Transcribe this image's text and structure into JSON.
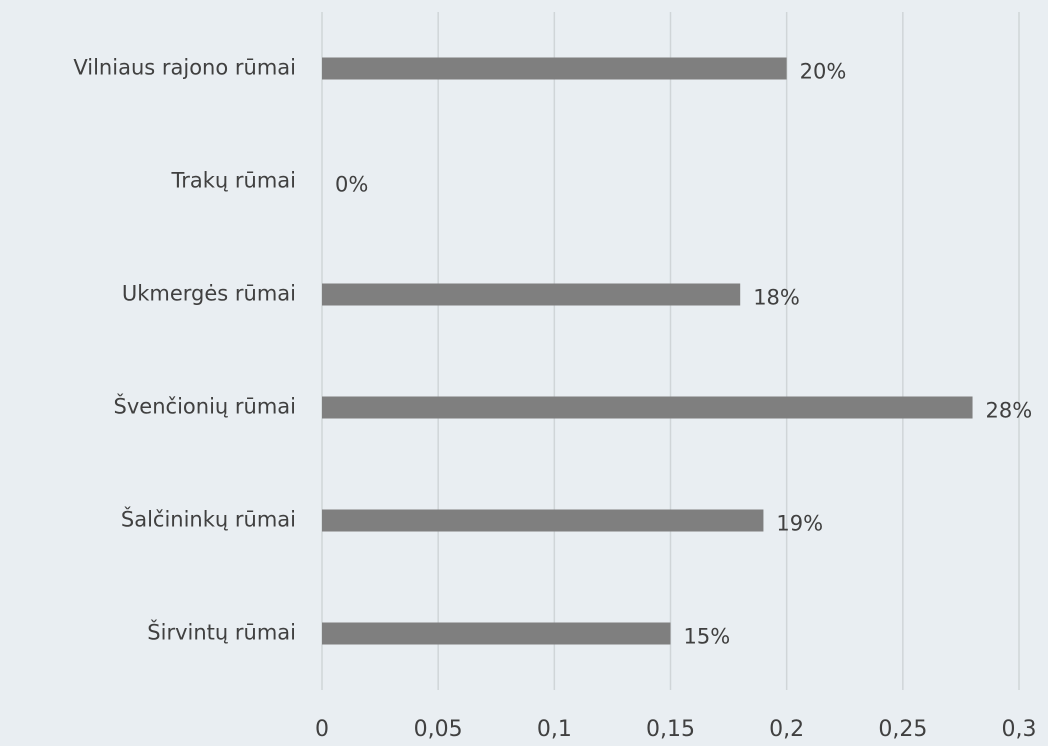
{
  "chart_data": {
    "type": "bar",
    "orientation": "horizontal",
    "categories": [
      "Vilniaus rajono rūmai",
      "Trakų rūmai",
      "Ukmergės rūmai",
      "Švenčionių rūmai",
      "Šalčininkų rūmai",
      "Širvintų rūmai"
    ],
    "values": [
      0.2,
      0,
      0.18,
      0.28,
      0.19,
      0.15
    ],
    "value_labels": [
      "20%",
      "0%",
      "18%",
      "28%",
      "19%",
      "15%"
    ],
    "color": "#7f7f7f",
    "xlim": [
      0,
      0.3
    ],
    "xticks": [
      0,
      {
        "value": 0.05,
        "label": "0,05"
      },
      {
        "value": 0.1,
        "label": "0,1"
      },
      {
        "value": 0.15,
        "label": "0,15"
      },
      {
        "value": 0.2,
        "label": "0,2"
      },
      {
        "value": 0.25,
        "label": "0,25"
      },
      {
        "value": 0.3,
        "label": "0,3"
      }
    ],
    "grid": true
  }
}
